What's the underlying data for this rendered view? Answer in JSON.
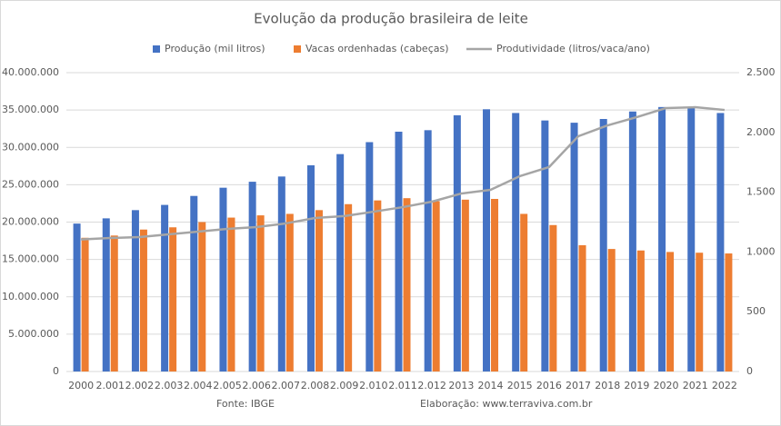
{
  "chart_data": {
    "type": "bar_line",
    "title": "Evolução da produção brasileira de leite",
    "source": "Fonte:  IBGE",
    "credit": "Elaboração: www.terraviva.com.br",
    "categories": [
      "2000",
      "2.001",
      "2.002",
      "2.003",
      "2.004",
      "2.005",
      "2.006",
      "2.007",
      "2.008",
      "2.009",
      "2.010",
      "2.011",
      "2.012",
      "2013",
      "2014",
      "2015",
      "2016",
      "2017",
      "2018",
      "2019",
      "2020",
      "2021",
      "2022"
    ],
    "series": [
      {
        "name": "Produção (mil litros)",
        "type": "bar",
        "color": "#4472c4",
        "axis": "y",
        "values": [
          19800000,
          20500000,
          21600000,
          22300000,
          23500000,
          24600000,
          25400000,
          26100000,
          27600000,
          29100000,
          30700000,
          32100000,
          32300000,
          34300000,
          35100000,
          34600000,
          33600000,
          33300000,
          33800000,
          34800000,
          35400000,
          35300000,
          34600000
        ]
      },
      {
        "name": "Vacas ordenhadas (cabeças)",
        "type": "bar",
        "color": "#ed7d31",
        "axis": "y",
        "values": [
          17900000,
          18200000,
          19000000,
          19300000,
          20000000,
          20600000,
          20900000,
          21100000,
          21600000,
          22400000,
          22900000,
          23200000,
          22800000,
          23000000,
          23100000,
          21100000,
          19600000,
          16900000,
          16400000,
          16200000,
          16000000,
          15900000,
          15800000
        ]
      },
      {
        "name": "Produtividade (litros/vaca/ano)",
        "type": "line",
        "color": "#a5a5a5",
        "axis": "y2",
        "values": [
          1105,
          1117,
          1125,
          1147,
          1170,
          1193,
          1208,
          1239,
          1284,
          1300,
          1337,
          1375,
          1421,
          1489,
          1520,
          1634,
          1710,
          1968,
          2059,
          2128,
          2204,
          2211,
          2188
        ]
      }
    ],
    "ylim": [
      0,
      40000000
    ],
    "yticks": [
      0,
      {
        "value": 5000000,
        "label": "5.000.000"
      },
      {
        "value": 10000000,
        "label": "10.000.000"
      },
      {
        "value": 15000000,
        "label": "15.000.000"
      },
      {
        "value": 20000000,
        "label": "20.000.000"
      },
      {
        "value": 25000000,
        "label": "25.000.000"
      },
      {
        "value": 30000000,
        "label": "30.000.000"
      },
      {
        "value": 35000000,
        "label": "35.000.000"
      },
      {
        "value": 40000000,
        "label": "40.000.000"
      }
    ],
    "y2lim": [
      0,
      2500
    ],
    "y2ticks": [
      0,
      500,
      {
        "value": 1000,
        "label": "1.000"
      },
      {
        "value": 1500,
        "label": "1.500"
      },
      {
        "value": 2000,
        "label": "2.000"
      },
      {
        "value": 2500,
        "label": "2.500"
      }
    ],
    "grid": true
  }
}
